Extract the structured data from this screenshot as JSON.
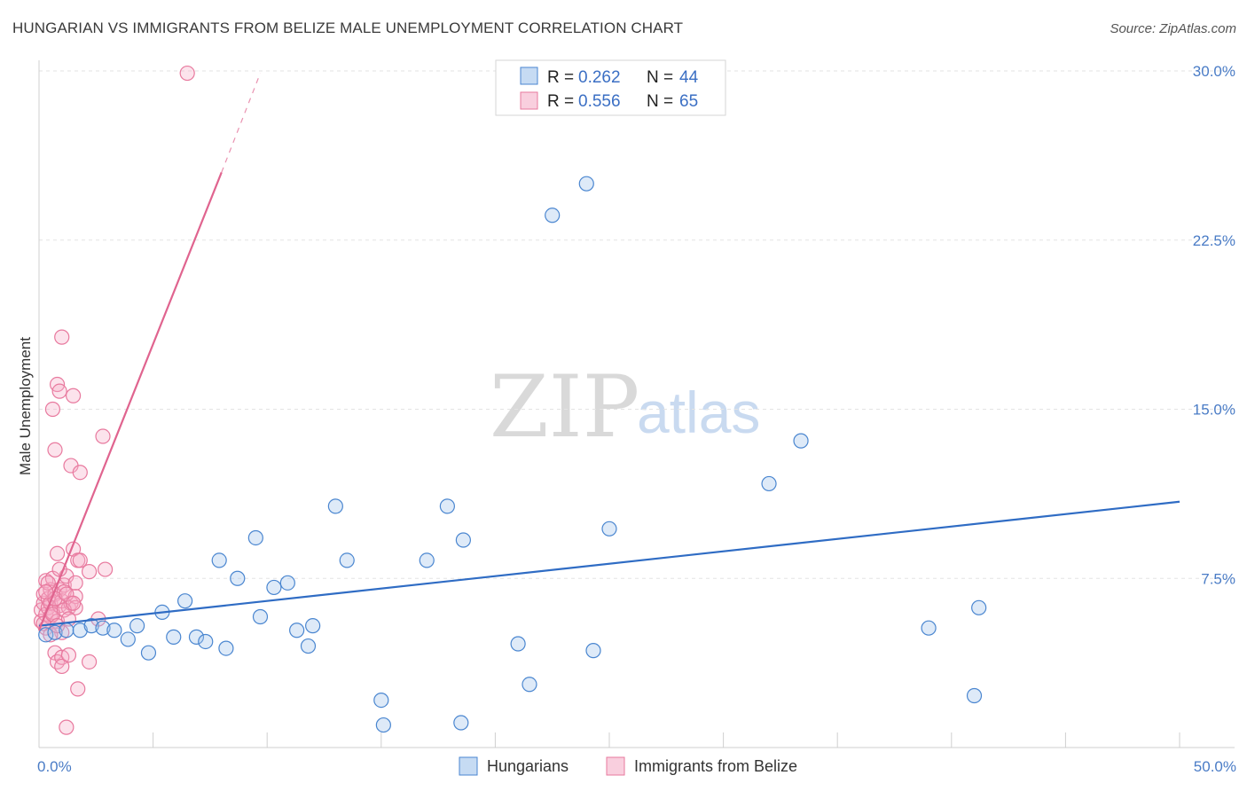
{
  "header": {
    "title": "HUNGARIAN VS IMMIGRANTS FROM BELIZE MALE UNEMPLOYMENT CORRELATION CHART",
    "source": "Source: ZipAtlas.com"
  },
  "watermark": {
    "zip": "ZIP",
    "atlas": "atlas"
  },
  "colors": {
    "blue": "#4a86d0",
    "blue_fill": "rgba(160,195,235,0.35)",
    "pink": "#e8799e",
    "pink_fill": "rgba(245,175,200,0.35)",
    "blue_line": "#2f6cc4",
    "pink_line": "#e0648f",
    "grid": "#e3e3e3",
    "tick_label": "#4a7cc6"
  },
  "legend": {
    "items": [
      {
        "r_label": "R =",
        "r_value": "0.262",
        "n_label": "N =",
        "n_value": "44"
      },
      {
        "r_label": "R =",
        "r_value": "0.556",
        "n_label": "N =",
        "n_value": "65"
      }
    ]
  },
  "chart_data": {
    "type": "scatter",
    "title": "HUNGARIAN VS IMMIGRANTS FROM BELIZE MALE UNEMPLOYMENT CORRELATION CHART",
    "xlabel": "",
    "ylabel": "Male Unemployment",
    "xlim": [
      0,
      50
    ],
    "ylim": [
      0,
      30
    ],
    "x_tick_labels": [
      "0.0%",
      "50.0%"
    ],
    "y_ticks": [
      7.5,
      15.0,
      22.5,
      30.0
    ],
    "y_tick_labels": [
      "7.5%",
      "15.0%",
      "22.5%",
      "30.0%"
    ],
    "series": [
      {
        "name": "Hungarians",
        "color": "blue",
        "trend": {
          "x": [
            0,
            50
          ],
          "y": [
            5.4,
            10.9
          ]
        },
        "points": [
          [
            0.3,
            5.0
          ],
          [
            0.7,
            5.1
          ],
          [
            1.2,
            5.2
          ],
          [
            1.8,
            5.2
          ],
          [
            2.3,
            5.4
          ],
          [
            2.8,
            5.3
          ],
          [
            3.3,
            5.2
          ],
          [
            3.9,
            4.8
          ],
          [
            4.3,
            5.4
          ],
          [
            4.8,
            4.2
          ],
          [
            5.4,
            6.0
          ],
          [
            5.9,
            4.9
          ],
          [
            6.4,
            6.5
          ],
          [
            6.9,
            4.9
          ],
          [
            7.3,
            4.7
          ],
          [
            7.9,
            8.3
          ],
          [
            8.2,
            4.4
          ],
          [
            8.7,
            7.5
          ],
          [
            9.5,
            9.3
          ],
          [
            9.7,
            5.8
          ],
          [
            10.3,
            7.1
          ],
          [
            10.9,
            7.3
          ],
          [
            11.3,
            5.2
          ],
          [
            11.8,
            4.5
          ],
          [
            12.0,
            5.4
          ],
          [
            13.0,
            10.7
          ],
          [
            13.5,
            8.3
          ],
          [
            15.0,
            2.1
          ],
          [
            15.1,
            1.0
          ],
          [
            17.0,
            8.3
          ],
          [
            17.9,
            10.7
          ],
          [
            18.5,
            1.1
          ],
          [
            18.6,
            9.2
          ],
          [
            21.0,
            4.6
          ],
          [
            21.5,
            2.8
          ],
          [
            22.5,
            23.6
          ],
          [
            24.0,
            25.0
          ],
          [
            24.3,
            4.3
          ],
          [
            25.0,
            9.7
          ],
          [
            32.0,
            11.7
          ],
          [
            33.4,
            13.6
          ],
          [
            39.0,
            5.3
          ],
          [
            41.0,
            2.3
          ],
          [
            41.2,
            6.2
          ]
        ]
      },
      {
        "name": "Immigrants from Belize",
        "color": "pink",
        "trend": {
          "x": [
            0,
            8.0
          ],
          "y": [
            5.2,
            25.5
          ]
        },
        "trend_dashed": {
          "x": [
            8.0,
            9.7
          ],
          "y": [
            25.5,
            29.9
          ]
        },
        "points": [
          [
            0.1,
            5.6
          ],
          [
            0.1,
            6.1
          ],
          [
            0.2,
            6.4
          ],
          [
            0.2,
            6.8
          ],
          [
            0.3,
            5.3
          ],
          [
            0.3,
            7.4
          ],
          [
            0.3,
            5.9
          ],
          [
            0.4,
            6.2
          ],
          [
            0.4,
            6.6
          ],
          [
            0.5,
            7.0
          ],
          [
            0.5,
            5.8
          ],
          [
            0.5,
            6.4
          ],
          [
            0.6,
            7.5
          ],
          [
            0.6,
            6.0
          ],
          [
            0.6,
            15.0
          ],
          [
            0.7,
            13.2
          ],
          [
            0.7,
            4.2
          ],
          [
            0.7,
            6.8
          ],
          [
            0.8,
            16.1
          ],
          [
            0.8,
            8.6
          ],
          [
            0.8,
            5.6
          ],
          [
            0.8,
            3.8
          ],
          [
            0.9,
            6.3
          ],
          [
            0.9,
            7.0
          ],
          [
            0.9,
            15.8
          ],
          [
            1.0,
            18.2
          ],
          [
            1.0,
            4.0
          ],
          [
            1.0,
            3.6
          ],
          [
            1.0,
            6.5
          ],
          [
            1.0,
            5.1
          ],
          [
            1.1,
            7.2
          ],
          [
            1.1,
            6.9
          ],
          [
            1.2,
            7.6
          ],
          [
            1.2,
            0.9
          ],
          [
            1.3,
            6.2
          ],
          [
            1.3,
            4.1
          ],
          [
            1.4,
            6.4
          ],
          [
            1.4,
            12.5
          ],
          [
            1.5,
            15.6
          ],
          [
            1.5,
            8.8
          ],
          [
            1.6,
            6.7
          ],
          [
            1.6,
            7.3
          ],
          [
            1.6,
            6.2
          ],
          [
            1.7,
            2.6
          ],
          [
            1.7,
            8.3
          ],
          [
            1.8,
            12.2
          ],
          [
            1.8,
            8.3
          ],
          [
            2.2,
            7.8
          ],
          [
            2.2,
            3.8
          ],
          [
            2.6,
            5.7
          ],
          [
            2.8,
            13.8
          ],
          [
            2.9,
            7.9
          ],
          [
            6.5,
            29.9
          ],
          [
            0.2,
            5.5
          ],
          [
            0.4,
            7.3
          ],
          [
            0.6,
            5.9
          ],
          [
            0.7,
            6.6
          ],
          [
            0.9,
            7.9
          ],
          [
            1.1,
            6.1
          ],
          [
            1.3,
            5.7
          ],
          [
            0.5,
            5.0
          ],
          [
            0.3,
            6.9
          ],
          [
            0.8,
            5.4
          ],
          [
            1.2,
            6.8
          ],
          [
            1.5,
            6.4
          ]
        ]
      }
    ]
  },
  "bottom_legend": {
    "items": [
      {
        "label": "Hungarians"
      },
      {
        "label": "Immigrants from Belize"
      }
    ]
  }
}
